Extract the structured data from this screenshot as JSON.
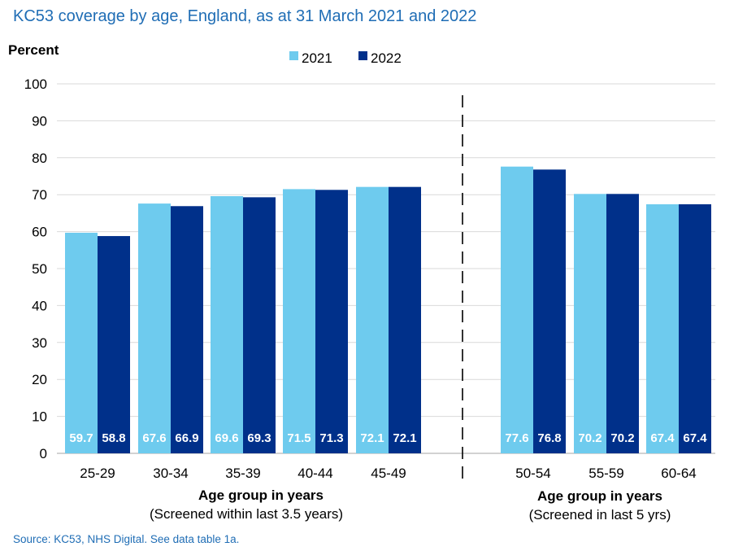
{
  "title": "KC53 coverage by age, England,  as at 31 March 2021 and 2022",
  "source": "Source: KC53, NHS Digital. See data table 1a.",
  "colors": {
    "s2021": "#6ecbee",
    "s2022": "#00308a",
    "grid": "#d9d9d9"
  },
  "chart_data": {
    "type": "bar",
    "ylabel": "Percent",
    "ylim": [
      0,
      100
    ],
    "yticks": [
      0,
      10,
      20,
      30,
      40,
      50,
      60,
      70,
      80,
      90,
      100
    ],
    "grid": true,
    "legend_position": "top",
    "categories": [
      "25-29",
      "30-34",
      "35-39",
      "40-44",
      "45-49",
      "50-54",
      "55-59",
      "60-64"
    ],
    "series": [
      {
        "name": "2021",
        "values": [
          59.7,
          67.6,
          69.6,
          71.5,
          72.1,
          77.6,
          70.2,
          67.4
        ]
      },
      {
        "name": "2022",
        "values": [
          58.8,
          66.9,
          69.3,
          71.3,
          72.1,
          76.8,
          70.2,
          67.4
        ]
      }
    ],
    "groups": [
      {
        "xlabel": "Age group in years",
        "sublabel": "(Screened within last 3.5 years)"
      },
      {
        "xlabel": "Age group in years",
        "sublabel": "(Screened in last 5 yrs)"
      }
    ]
  }
}
